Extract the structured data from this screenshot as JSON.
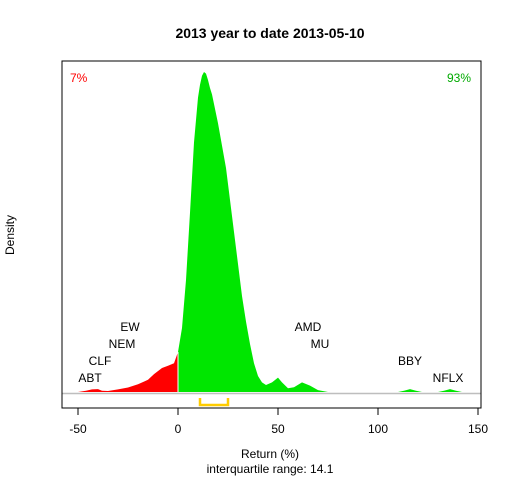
{
  "chart_data": {
    "type": "area",
    "title": "2013  year to date 2013-05-10",
    "xlabel": "Return (%)",
    "ylabel": "Density",
    "subtitle": "interquartile range: 14.1",
    "xlim": [
      -50,
      150
    ],
    "ylim": [
      0,
      1
    ],
    "x_ticks": [
      -50,
      0,
      50,
      100,
      150
    ],
    "grid": false,
    "pct_negative": "7%",
    "pct_positive": "93%",
    "colors": {
      "negative": "#ff0000",
      "positive": "#00e600",
      "iqr": "#ffcc00",
      "baseline": "#bebebe"
    },
    "density": {
      "x": [
        -50,
        -46,
        -43,
        -40,
        -38,
        -35,
        -30,
        -25,
        -20,
        -15,
        -12,
        -8,
        -5,
        -2,
        0,
        2,
        4,
        6,
        8,
        10,
        11,
        12,
        13,
        14,
        15,
        16,
        17,
        18,
        19,
        20,
        22,
        24,
        26,
        28,
        30,
        32,
        34,
        36,
        38,
        40,
        42,
        44,
        47,
        50,
        52,
        55,
        58,
        62,
        66,
        70,
        75,
        80,
        90,
        100,
        110,
        113,
        116,
        119,
        122,
        130,
        133,
        136,
        139,
        142,
        150
      ],
      "y": [
        0.0,
        0.004,
        0.008,
        0.009,
        0.004,
        0.003,
        0.008,
        0.014,
        0.024,
        0.038,
        0.056,
        0.075,
        0.082,
        0.09,
        0.125,
        0.2,
        0.35,
        0.56,
        0.78,
        0.92,
        0.96,
        0.988,
        1.0,
        0.995,
        0.975,
        0.95,
        0.93,
        0.9,
        0.87,
        0.84,
        0.77,
        0.7,
        0.6,
        0.5,
        0.4,
        0.3,
        0.22,
        0.15,
        0.09,
        0.05,
        0.03,
        0.022,
        0.03,
        0.045,
        0.03,
        0.012,
        0.015,
        0.03,
        0.02,
        0.006,
        0.0,
        0.0,
        0.0,
        0.0,
        0.0,
        0.004,
        0.009,
        0.004,
        0.0,
        0.0,
        0.004,
        0.009,
        0.004,
        0.0,
        0.0
      ]
    },
    "iqr": [
      11,
      25
    ],
    "annotations": [
      {
        "label": "ABT",
        "x": -44,
        "level": 1
      },
      {
        "label": "CLF",
        "x": -39,
        "level": 2
      },
      {
        "label": "NEM",
        "x": -28,
        "level": 3
      },
      {
        "label": "EW",
        "x": -24,
        "level": 4
      },
      {
        "label": "AMD",
        "x": 65,
        "level": 4
      },
      {
        "label": "MU",
        "x": 71,
        "level": 3
      },
      {
        "label": "BBY",
        "x": 116,
        "level": 2
      },
      {
        "label": "NFLX",
        "x": 135,
        "level": 1
      }
    ]
  }
}
